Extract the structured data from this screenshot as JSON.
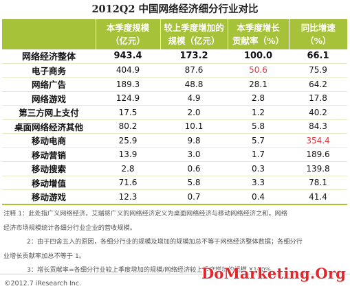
{
  "title": "2012Q2 中国网络经济细分行业对比",
  "table": {
    "headers": [
      [
        "",
        ""
      ],
      [
        "本季度规模",
        "（亿元）"
      ],
      [
        "较上季度增加的",
        "规模（亿元）"
      ],
      [
        "本季度增长",
        "贡献率（%）"
      ],
      [
        "同比增速",
        "（%）"
      ]
    ],
    "rows": [
      {
        "label": "网络经济整体",
        "values": [
          "943.4",
          "173.2",
          "100.0",
          "66.1"
        ],
        "highlight": [
          false,
          false,
          false,
          false
        ]
      },
      {
        "label": "电子商务",
        "values": [
          "404.9",
          "87.6",
          "50.6",
          "75.9"
        ],
        "highlight": [
          false,
          false,
          true,
          false
        ]
      },
      {
        "label": "网络广告",
        "values": [
          "189.3",
          "48.8",
          "28.1",
          "64.2"
        ],
        "highlight": [
          false,
          false,
          false,
          false
        ]
      },
      {
        "label": "网络游戏",
        "values": [
          "124.9",
          "4.9",
          "2.8",
          "17.8"
        ],
        "highlight": [
          false,
          false,
          false,
          false
        ]
      },
      {
        "label": "第三方网上支付",
        "values": [
          "17.5",
          "2.0",
          "1.2",
          "40.2"
        ],
        "highlight": [
          false,
          false,
          false,
          false
        ]
      },
      {
        "label": "桌面网络经济其他",
        "values": [
          "80.2",
          "10.1",
          "5.8",
          "84.3"
        ],
        "highlight": [
          false,
          false,
          false,
          false
        ]
      },
      {
        "label": "移动电商",
        "values": [
          "25.9",
          "9.8",
          "5.7",
          "354.4"
        ],
        "highlight": [
          false,
          false,
          false,
          true
        ]
      },
      {
        "label": "移动营销",
        "values": [
          "13.9",
          "3.0",
          "1.7",
          "189.6"
        ],
        "highlight": [
          false,
          false,
          false,
          false
        ]
      },
      {
        "label": "移动搜索",
        "values": [
          "2.8",
          "0.6",
          "0.3",
          "139.8"
        ],
        "highlight": [
          false,
          false,
          false,
          false
        ]
      },
      {
        "label": "移动增值",
        "values": [
          "71.6",
          "5.8",
          "3.3",
          "78.1"
        ],
        "highlight": [
          false,
          false,
          false,
          false
        ]
      },
      {
        "label": "移动游戏",
        "values": [
          "12.3",
          "0.7",
          "0.4",
          "41.4"
        ],
        "highlight": [
          false,
          false,
          false,
          false
        ]
      }
    ]
  },
  "notes": {
    "note1_line1": "注释 1：此处指广义网络经济，艾瑞将广义的网络经济定义为桌面网络经济与移动网络经济之和。网络",
    "note1_line2": "经济市场规模统计各细分行业企业的营收规模。",
    "note2_line1": "2：由于四舍五入的原因，各细分行业的规模及增加的规模加总不等于网络经济整体数据；各细分行",
    "note2_line2": "业增长贡献率加总不等于 1。",
    "note3_line1": "3：增长贡献率=各细分行业较上季度增加的规模/网络经济较上季度增加的规模 X100%"
  },
  "footer": {
    "copyright": "©2012.7 iResearch Inc.",
    "watermark": "DoMarketing.Org"
  },
  "colors": {
    "header_bg": "#a6c238",
    "highlight": "#e8323a",
    "watermark": "#e3262b"
  }
}
